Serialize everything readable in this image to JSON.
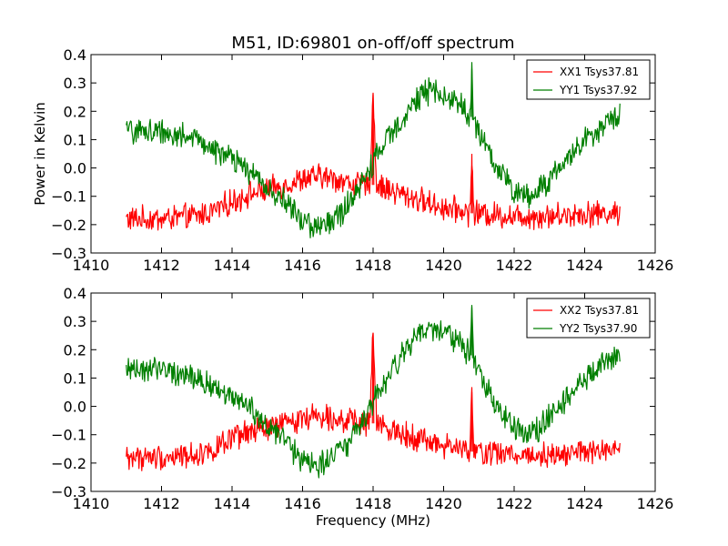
{
  "chart_data": [
    {
      "type": "line",
      "title": "M51, ID:69801 on-off/off spectrum",
      "xlabel": "",
      "ylabel": "Power in Kelvin",
      "xlim": [
        1410,
        1426
      ],
      "ylim": [
        -0.3,
        0.4
      ],
      "xticks": [
        "1410",
        "1412",
        "1414",
        "1416",
        "1418",
        "1420",
        "1422",
        "1424",
        "1426"
      ],
      "yticks": [
        "0.4",
        "0.3",
        "0.2",
        "0.1",
        "0.0",
        "−0.1",
        "−0.2",
        "−0.3"
      ],
      "grid": false,
      "legend": "top-right",
      "series": [
        {
          "name": "XX1 Tsys37.81",
          "color": "#ff0000",
          "x": [
            1411.0,
            1412.0,
            1413.0,
            1413.5,
            1414.0,
            1414.5,
            1415.0,
            1415.5,
            1416.0,
            1416.5,
            1417.0,
            1417.5,
            1417.9,
            1418.0,
            1418.1,
            1418.5,
            1419.0,
            1419.5,
            1420.0,
            1420.5,
            1420.75,
            1420.8,
            1420.85,
            1421.0,
            1422.0,
            1423.0,
            1424.0,
            1425.0
          ],
          "y": [
            -0.18,
            -0.18,
            -0.17,
            -0.15,
            -0.12,
            -0.09,
            -0.08,
            -0.06,
            -0.04,
            -0.03,
            -0.04,
            -0.06,
            -0.06,
            0.26,
            -0.06,
            -0.08,
            -0.1,
            -0.12,
            -0.14,
            -0.15,
            -0.16,
            0.05,
            -0.16,
            -0.16,
            -0.17,
            -0.17,
            -0.16,
            -0.16
          ]
        },
        {
          "name": "YY1 Tsys37.92",
          "color": "#007f00",
          "x": [
            1411.0,
            1412.0,
            1413.0,
            1414.0,
            1414.5,
            1415.0,
            1415.5,
            1416.0,
            1416.5,
            1417.0,
            1417.5,
            1418.0,
            1418.5,
            1419.0,
            1419.5,
            1420.0,
            1420.5,
            1420.75,
            1420.8,
            1420.85,
            1421.0,
            1421.5,
            1422.0,
            1422.5,
            1423.0,
            1423.5,
            1424.0,
            1424.5,
            1425.0
          ],
          "y": [
            0.13,
            0.13,
            0.1,
            0.03,
            -0.01,
            -0.07,
            -0.12,
            -0.19,
            -0.21,
            -0.17,
            -0.1,
            0.02,
            0.12,
            0.21,
            0.27,
            0.26,
            0.22,
            0.18,
            0.35,
            0.17,
            0.12,
            0.0,
            -0.08,
            -0.1,
            -0.04,
            0.03,
            0.1,
            0.15,
            0.18
          ]
        }
      ]
    },
    {
      "type": "line",
      "title": "",
      "xlabel": "Frequency (MHz)",
      "ylabel": "",
      "xlim": [
        1410,
        1426
      ],
      "ylim": [
        -0.3,
        0.4
      ],
      "xticks": [
        "1410",
        "1412",
        "1414",
        "1416",
        "1418",
        "1420",
        "1422",
        "1424",
        "1426"
      ],
      "yticks": [
        "0.4",
        "0.3",
        "0.2",
        "0.1",
        "0.0",
        "−0.1",
        "−0.2",
        "−0.3"
      ],
      "grid": false,
      "legend": "top-right",
      "series": [
        {
          "name": "XX2 Tsys37.81",
          "color": "#ff0000",
          "x": [
            1411.0,
            1412.0,
            1413.0,
            1413.5,
            1414.0,
            1414.5,
            1415.0,
            1415.5,
            1416.0,
            1416.5,
            1417.0,
            1417.5,
            1417.9,
            1418.0,
            1418.1,
            1418.5,
            1419.0,
            1419.5,
            1420.0,
            1420.5,
            1420.75,
            1420.8,
            1420.85,
            1421.0,
            1422.0,
            1423.0,
            1424.0,
            1425.0
          ],
          "y": [
            -0.18,
            -0.18,
            -0.17,
            -0.15,
            -0.12,
            -0.09,
            -0.08,
            -0.06,
            -0.04,
            -0.03,
            -0.04,
            -0.06,
            -0.06,
            0.26,
            -0.06,
            -0.08,
            -0.1,
            -0.12,
            -0.14,
            -0.15,
            -0.16,
            0.05,
            -0.16,
            -0.16,
            -0.17,
            -0.17,
            -0.16,
            -0.16
          ]
        },
        {
          "name": "YY2 Tsys37.90",
          "color": "#007f00",
          "x": [
            1411.0,
            1412.0,
            1413.0,
            1414.0,
            1414.5,
            1415.0,
            1415.5,
            1416.0,
            1416.5,
            1417.0,
            1417.5,
            1418.0,
            1418.5,
            1419.0,
            1419.5,
            1420.0,
            1420.5,
            1420.75,
            1420.8,
            1420.85,
            1421.0,
            1421.5,
            1422.0,
            1422.5,
            1423.0,
            1423.5,
            1424.0,
            1424.5,
            1425.0
          ],
          "y": [
            0.13,
            0.13,
            0.1,
            0.03,
            -0.01,
            -0.07,
            -0.12,
            -0.19,
            -0.21,
            -0.17,
            -0.1,
            0.02,
            0.12,
            0.21,
            0.27,
            0.26,
            0.22,
            0.18,
            0.35,
            0.17,
            0.12,
            0.0,
            -0.08,
            -0.1,
            -0.04,
            0.03,
            0.1,
            0.15,
            0.18
          ]
        }
      ]
    }
  ]
}
